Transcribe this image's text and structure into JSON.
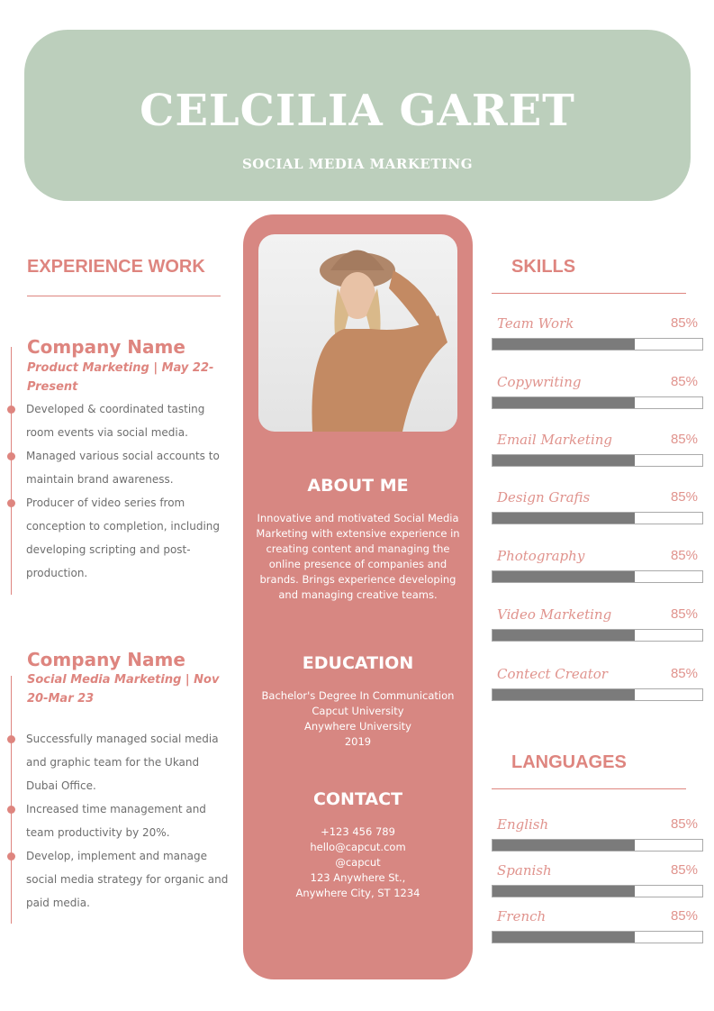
{
  "header": {
    "name": "CELCILIA GARET",
    "role": "SOCIAL MEDIA MARKETING"
  },
  "experience": {
    "title": "EXPERIENCE WORK",
    "jobs": [
      {
        "company": "Company Name",
        "subtitle": "Product Marketing | May 22-Present",
        "bullets": [
          "Developed & coordinated tasting room events via social media.",
          "Managed various social accounts to maintain brand awareness.",
          "Producer of video series from conception to completion, including developing scripting and post-production."
        ]
      },
      {
        "company": "Company Name",
        "subtitle": "Social Media Marketing | Nov 20-Mar 23",
        "bullets": [
          "Successfully managed social media and graphic team for the Ukand Dubai Office.",
          "Increased time management and team productivity by 20%.",
          "Develop, implement and manage social media strategy for organic and paid media."
        ]
      }
    ]
  },
  "about": {
    "title": "ABOUT ME",
    "text": "Innovative and motivated Social Media Marketing with extensive experience in creating content and managing the online presence of companies and brands. Brings experience developing and managing creative teams."
  },
  "education": {
    "title": "EDUCATION",
    "lines": [
      "Bachelor's Degree In Communication",
      "Capcut University",
      "Anywhere University",
      "2019"
    ]
  },
  "contact": {
    "title": "CONTACT",
    "lines": [
      "+123  456 789",
      "hello@capcut.com",
      "@capcut",
      "123 Anywhere St.,",
      "Anywhere City, ST 1234"
    ]
  },
  "skills": {
    "title": "SKILLS",
    "items": [
      {
        "name": "Team Work",
        "pct": "85%",
        "fill": 0.68
      },
      {
        "name": "Copywriting",
        "pct": "85%",
        "fill": 0.68
      },
      {
        "name": "Email Marketing",
        "pct": "85%",
        "fill": 0.68
      },
      {
        "name": "Design Grafis",
        "pct": "85%",
        "fill": 0.68
      },
      {
        "name": "Photography",
        "pct": "85%",
        "fill": 0.68
      },
      {
        "name": "Video Marketing",
        "pct": "85%",
        "fill": 0.68
      },
      {
        "name": "Contect Creator",
        "pct": "85%",
        "fill": 0.68
      }
    ]
  },
  "languages": {
    "title": "LANGUAGES",
    "items": [
      {
        "name": "English",
        "pct": "85%",
        "fill": 0.68
      },
      {
        "name": "Spanish",
        "pct": "85%",
        "fill": 0.68
      },
      {
        "name": "French",
        "pct": "85%",
        "fill": 0.68
      }
    ]
  },
  "colors": {
    "accent": "#de857f",
    "header": "#bccfbc",
    "panel": "#d78782",
    "bar": "#7b7b7b"
  }
}
